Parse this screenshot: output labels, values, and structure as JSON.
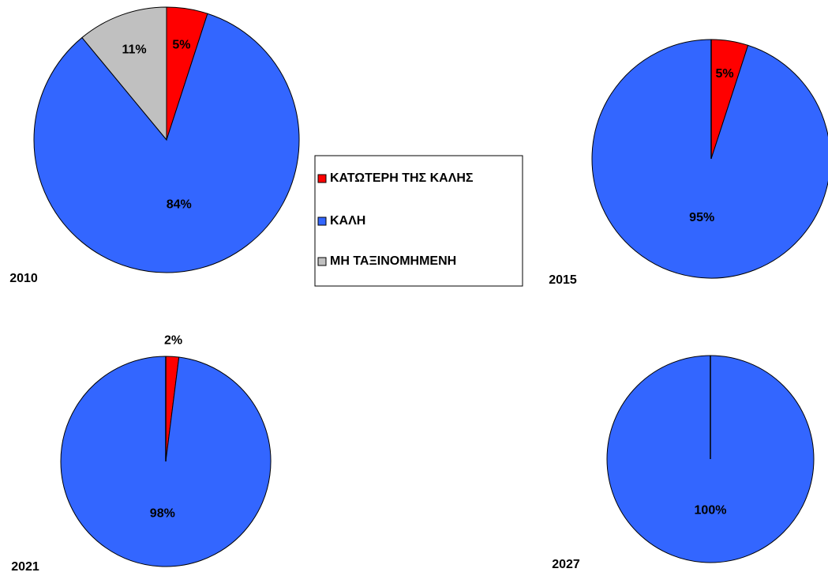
{
  "legend": {
    "labels": [
      "ΚΑΤΩΤΕΡΗ ΤΗΣ ΚΑΛΗΣ",
      "ΚΑΛΗ",
      "ΜΗ ΤΑΞΙΝΟΜΗΜΕΝΗ"
    ],
    "colors": [
      "#ff0000",
      "#3366ff",
      "#c0c0c0"
    ]
  },
  "chart_data": [
    {
      "type": "pie",
      "title": "2010",
      "values": [
        5,
        84,
        11
      ],
      "value_labels": [
        "5%",
        "84%",
        "11%"
      ]
    },
    {
      "type": "pie",
      "title": "2015",
      "values": [
        5,
        95,
        0
      ],
      "value_labels": [
        "5%",
        "95%",
        null
      ]
    },
    {
      "type": "pie",
      "title": "2021",
      "values": [
        2,
        98,
        0
      ],
      "value_labels": [
        "2%",
        "98%",
        null
      ]
    },
    {
      "type": "pie",
      "title": "2027",
      "values": [
        0,
        100,
        0
      ],
      "value_labels": [
        null,
        "100%",
        null
      ]
    }
  ]
}
